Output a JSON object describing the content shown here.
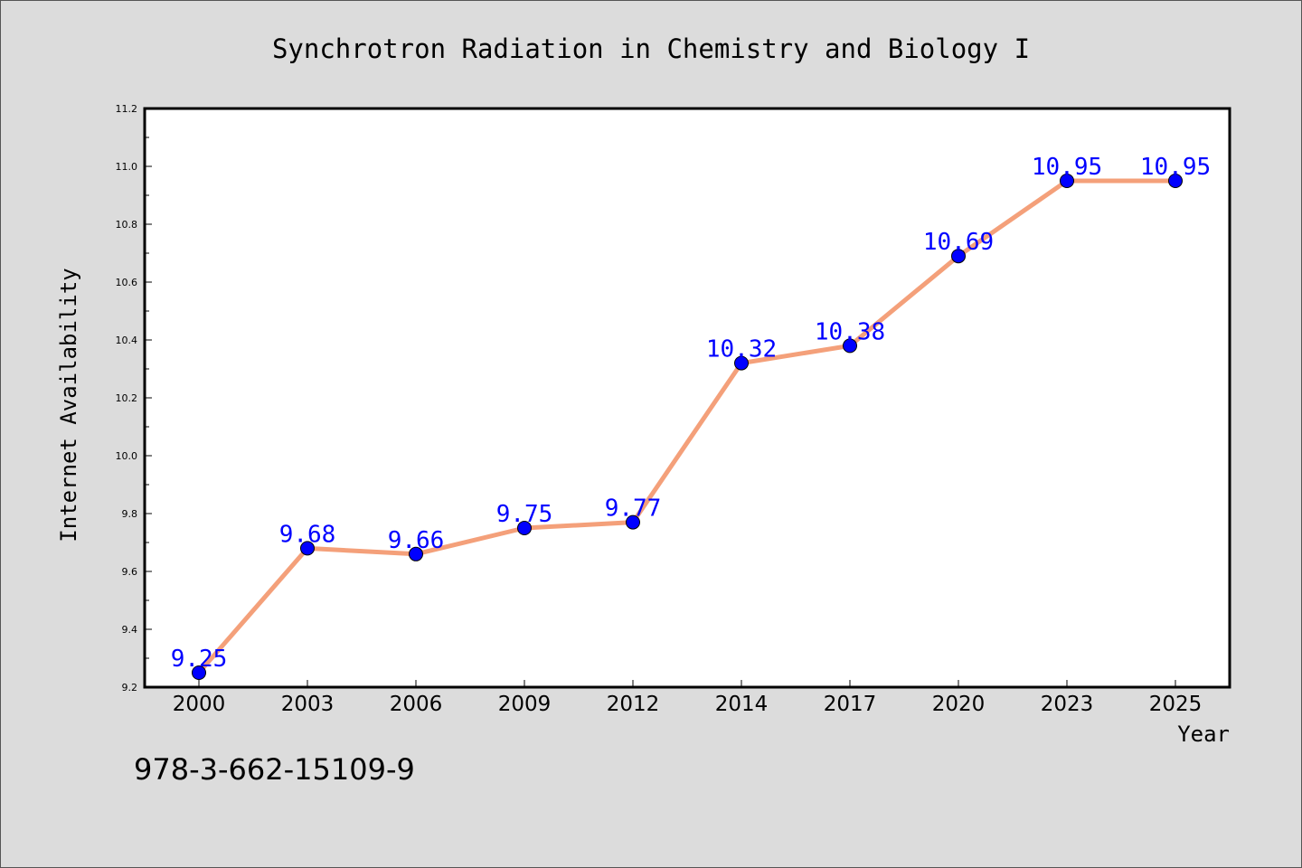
{
  "chart_data": {
    "type": "line",
    "title": "Synchrotron Radiation in Chemistry and Biology I",
    "xlabel": "Year",
    "ylabel": "Internet Availability",
    "categories": [
      "2000",
      "2003",
      "2006",
      "2009",
      "2012",
      "2014",
      "2017",
      "2020",
      "2023",
      "2025"
    ],
    "series": [
      {
        "values": [
          9.25,
          9.68,
          9.66,
          9.75,
          9.77,
          10.32,
          10.38,
          10.69,
          10.95,
          10.95
        ],
        "labels": [
          "9.25",
          "9.68",
          "9.66",
          "9.75",
          "9.77",
          "10.32",
          "10.38",
          "10.69",
          "10.95",
          "10.95"
        ],
        "line_color": "#f4a07a",
        "marker_color": "#0000ff",
        "label_color": "#0000ff"
      }
    ],
    "ylim": [
      9.2,
      11.2
    ],
    "yticks": [
      "9.2",
      "9.4",
      "9.6",
      "9.8",
      "10.0",
      "10.2",
      "10.4",
      "10.6",
      "10.8",
      "11.0",
      "11.2"
    ],
    "grid": false,
    "legend": "none"
  },
  "footer": {
    "isbn": "978-3-662-15109-9"
  }
}
